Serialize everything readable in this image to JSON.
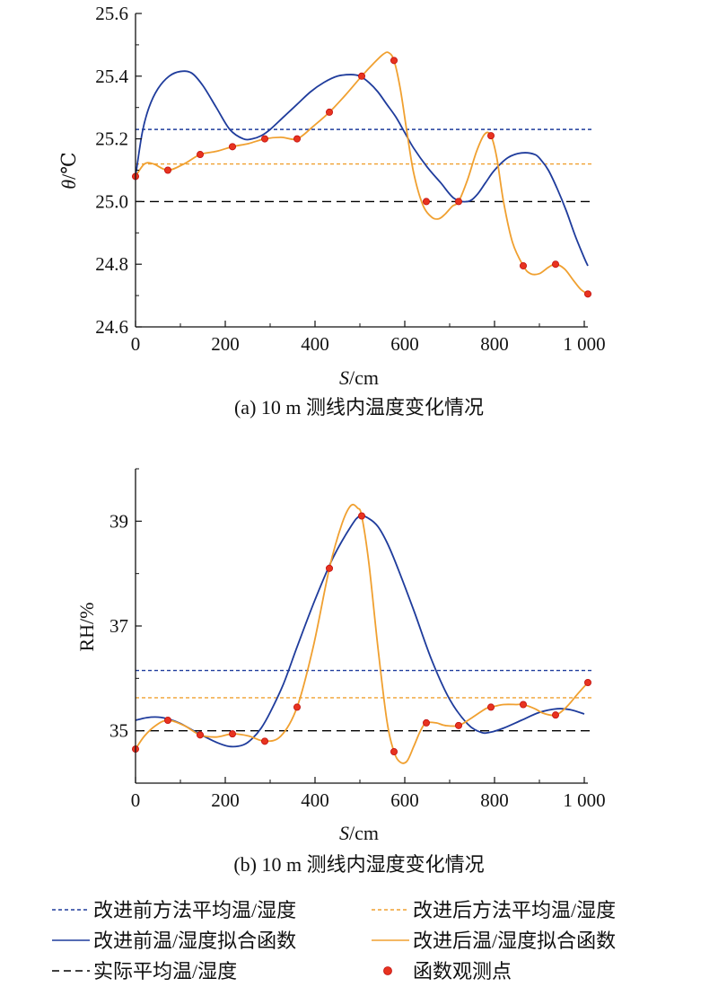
{
  "colors": {
    "before": "#1f3c9c",
    "after": "#f0a030",
    "actual": "#000000",
    "point_fill": "#e8331f",
    "point_stroke": "#c01010"
  },
  "legend": {
    "before_avg": "改进前方法平均温/湿度",
    "after_avg": "改进后方法平均温/湿度",
    "before_fit": "改进前温/湿度拟合函数",
    "after_fit": "改进后温/湿度拟合函数",
    "actual_avg": "实际平均温/湿度",
    "points": "函数观测点"
  },
  "chart_data": [
    {
      "type": "line",
      "caption": "(a) 10 m 测线内温度变化情况",
      "xlabel_var": "S",
      "xlabel_unit": "/cm",
      "ylabel_var": "θ",
      "ylabel_unit": "/℃",
      "xlim": [
        0,
        1000
      ],
      "ylim": [
        24.6,
        25.6
      ],
      "xticks": [
        0,
        200,
        400,
        600,
        800,
        1000
      ],
      "xtick_labels": [
        "0",
        "200",
        "400",
        "600",
        "800",
        "1 000"
      ],
      "yticks": [
        24.6,
        24.8,
        25.0,
        25.2,
        25.4,
        25.6
      ],
      "ytick_labels": [
        "24.6",
        "24.8",
        "25.0",
        "25.2",
        "25.4",
        "25.6"
      ],
      "before_avg": 25.23,
      "after_avg": 25.12,
      "actual_avg": 25.0,
      "points_x": [
        0,
        72,
        144,
        216,
        288,
        360,
        432,
        504,
        576,
        648,
        720,
        792,
        864,
        936,
        1008
      ],
      "points_y": [
        25.08,
        25.1,
        25.15,
        25.175,
        25.2,
        25.2,
        25.285,
        25.4,
        25.45,
        25.0,
        25.0,
        25.21,
        24.795,
        24.8,
        24.705
      ],
      "after_fit": {
        "x": [
          0,
          20,
          40,
          72,
          108,
          144,
          180,
          216,
          252,
          288,
          324,
          360,
          396,
          432,
          468,
          504,
          530,
          552,
          564,
          576,
          590,
          605,
          620,
          640,
          660,
          676,
          690,
          706,
          720,
          740,
          760,
          778,
          792,
          805,
          820,
          840,
          864,
          880,
          900,
          920,
          936,
          956,
          975,
          992,
          1008
        ],
        "y": [
          25.08,
          25.12,
          25.12,
          25.1,
          25.12,
          25.15,
          25.16,
          25.175,
          25.185,
          25.2,
          25.205,
          25.2,
          25.24,
          25.285,
          25.34,
          25.4,
          25.44,
          25.47,
          25.475,
          25.45,
          25.36,
          25.22,
          25.09,
          24.99,
          24.95,
          24.945,
          24.96,
          24.985,
          25.0,
          25.07,
          25.16,
          25.215,
          25.21,
          25.14,
          25.0,
          24.87,
          24.795,
          24.77,
          24.77,
          24.79,
          24.8,
          24.785,
          24.75,
          24.72,
          24.705
        ]
      },
      "before_fit": {
        "x": [
          0,
          15,
          30,
          50,
          75,
          100,
          125,
          150,
          180,
          210,
          240,
          260,
          280,
          300,
          330,
          360,
          390,
          420,
          450,
          480,
          500,
          520,
          540,
          560,
          580,
          600,
          620,
          650,
          680,
          710,
          740,
          760,
          780,
          800,
          830,
          860,
          890,
          905,
          920,
          940,
          960,
          980,
          1000,
          1008
        ],
        "y": [
          25.08,
          25.22,
          25.3,
          25.36,
          25.4,
          25.415,
          25.41,
          25.37,
          25.3,
          25.23,
          25.2,
          25.2,
          25.21,
          25.23,
          25.27,
          25.31,
          25.35,
          25.38,
          25.4,
          25.405,
          25.4,
          25.38,
          25.35,
          25.31,
          25.27,
          25.22,
          25.17,
          25.11,
          25.06,
          25.01,
          25.0,
          25.02,
          25.06,
          25.1,
          25.14,
          25.155,
          25.15,
          25.13,
          25.1,
          25.04,
          24.97,
          24.89,
          24.82,
          24.795
        ]
      }
    },
    {
      "type": "line",
      "caption": "(b) 10 m 测线内湿度变化情况",
      "xlabel_var": "S",
      "xlabel_unit": "/cm",
      "ylabel": "RH/%",
      "xlim": [
        0,
        1000
      ],
      "ylim": [
        34.0,
        40.0
      ],
      "xticks": [
        0,
        200,
        400,
        600,
        800,
        1000
      ],
      "xtick_labels": [
        "0",
        "200",
        "400",
        "600",
        "800",
        "1 000"
      ],
      "yticks": [
        35,
        37,
        39
      ],
      "ytick_labels": [
        "35",
        "37",
        "39"
      ],
      "before_avg": 36.15,
      "after_avg": 35.63,
      "actual_avg": 35.0,
      "points_x": [
        0,
        72,
        144,
        216,
        288,
        360,
        432,
        504,
        576,
        648,
        720,
        792,
        864,
        936,
        1008
      ],
      "points_y": [
        34.65,
        35.2,
        34.92,
        34.94,
        34.8,
        35.45,
        38.1,
        39.1,
        34.6,
        35.15,
        35.1,
        35.45,
        35.5,
        35.3,
        35.92
      ],
      "after_fit": {
        "x": [
          0,
          20,
          45,
          72,
          108,
          144,
          180,
          216,
          252,
          288,
          324,
          360,
          396,
          432,
          460,
          480,
          495,
          504,
          520,
          540,
          560,
          576,
          590,
          605,
          620,
          635,
          648,
          670,
          690,
          720,
          750,
          780,
          792,
          820,
          850,
          864,
          890,
          910,
          936,
          960,
          985,
          1008
        ],
        "y": [
          34.65,
          34.9,
          35.1,
          35.2,
          35.1,
          34.92,
          34.88,
          34.94,
          34.9,
          34.8,
          34.9,
          35.45,
          36.6,
          38.1,
          38.95,
          39.3,
          39.25,
          39.1,
          38.2,
          36.6,
          35.2,
          34.6,
          34.4,
          34.42,
          34.7,
          35.0,
          35.15,
          35.15,
          35.1,
          35.1,
          35.25,
          35.42,
          35.45,
          35.5,
          35.5,
          35.5,
          35.42,
          35.33,
          35.3,
          35.45,
          35.7,
          35.92
        ]
      },
      "before_fit": {
        "x": [
          0,
          25,
          50,
          75,
          100,
          140,
          180,
          210,
          240,
          260,
          280,
          300,
          330,
          360,
          400,
          440,
          480,
          500,
          520,
          540,
          560,
          580,
          620,
          660,
          700,
          740,
          770,
          790,
          820,
          860,
          900,
          940,
          970,
          1000
        ],
        "y": [
          35.2,
          35.25,
          35.26,
          35.22,
          35.14,
          34.95,
          34.78,
          34.7,
          34.73,
          34.85,
          35.05,
          35.35,
          35.9,
          36.6,
          37.5,
          38.3,
          38.9,
          39.1,
          39.05,
          38.9,
          38.6,
          38.2,
          37.3,
          36.35,
          35.6,
          35.13,
          34.97,
          34.97,
          35.05,
          35.2,
          35.35,
          35.42,
          35.4,
          35.32
        ]
      }
    }
  ]
}
